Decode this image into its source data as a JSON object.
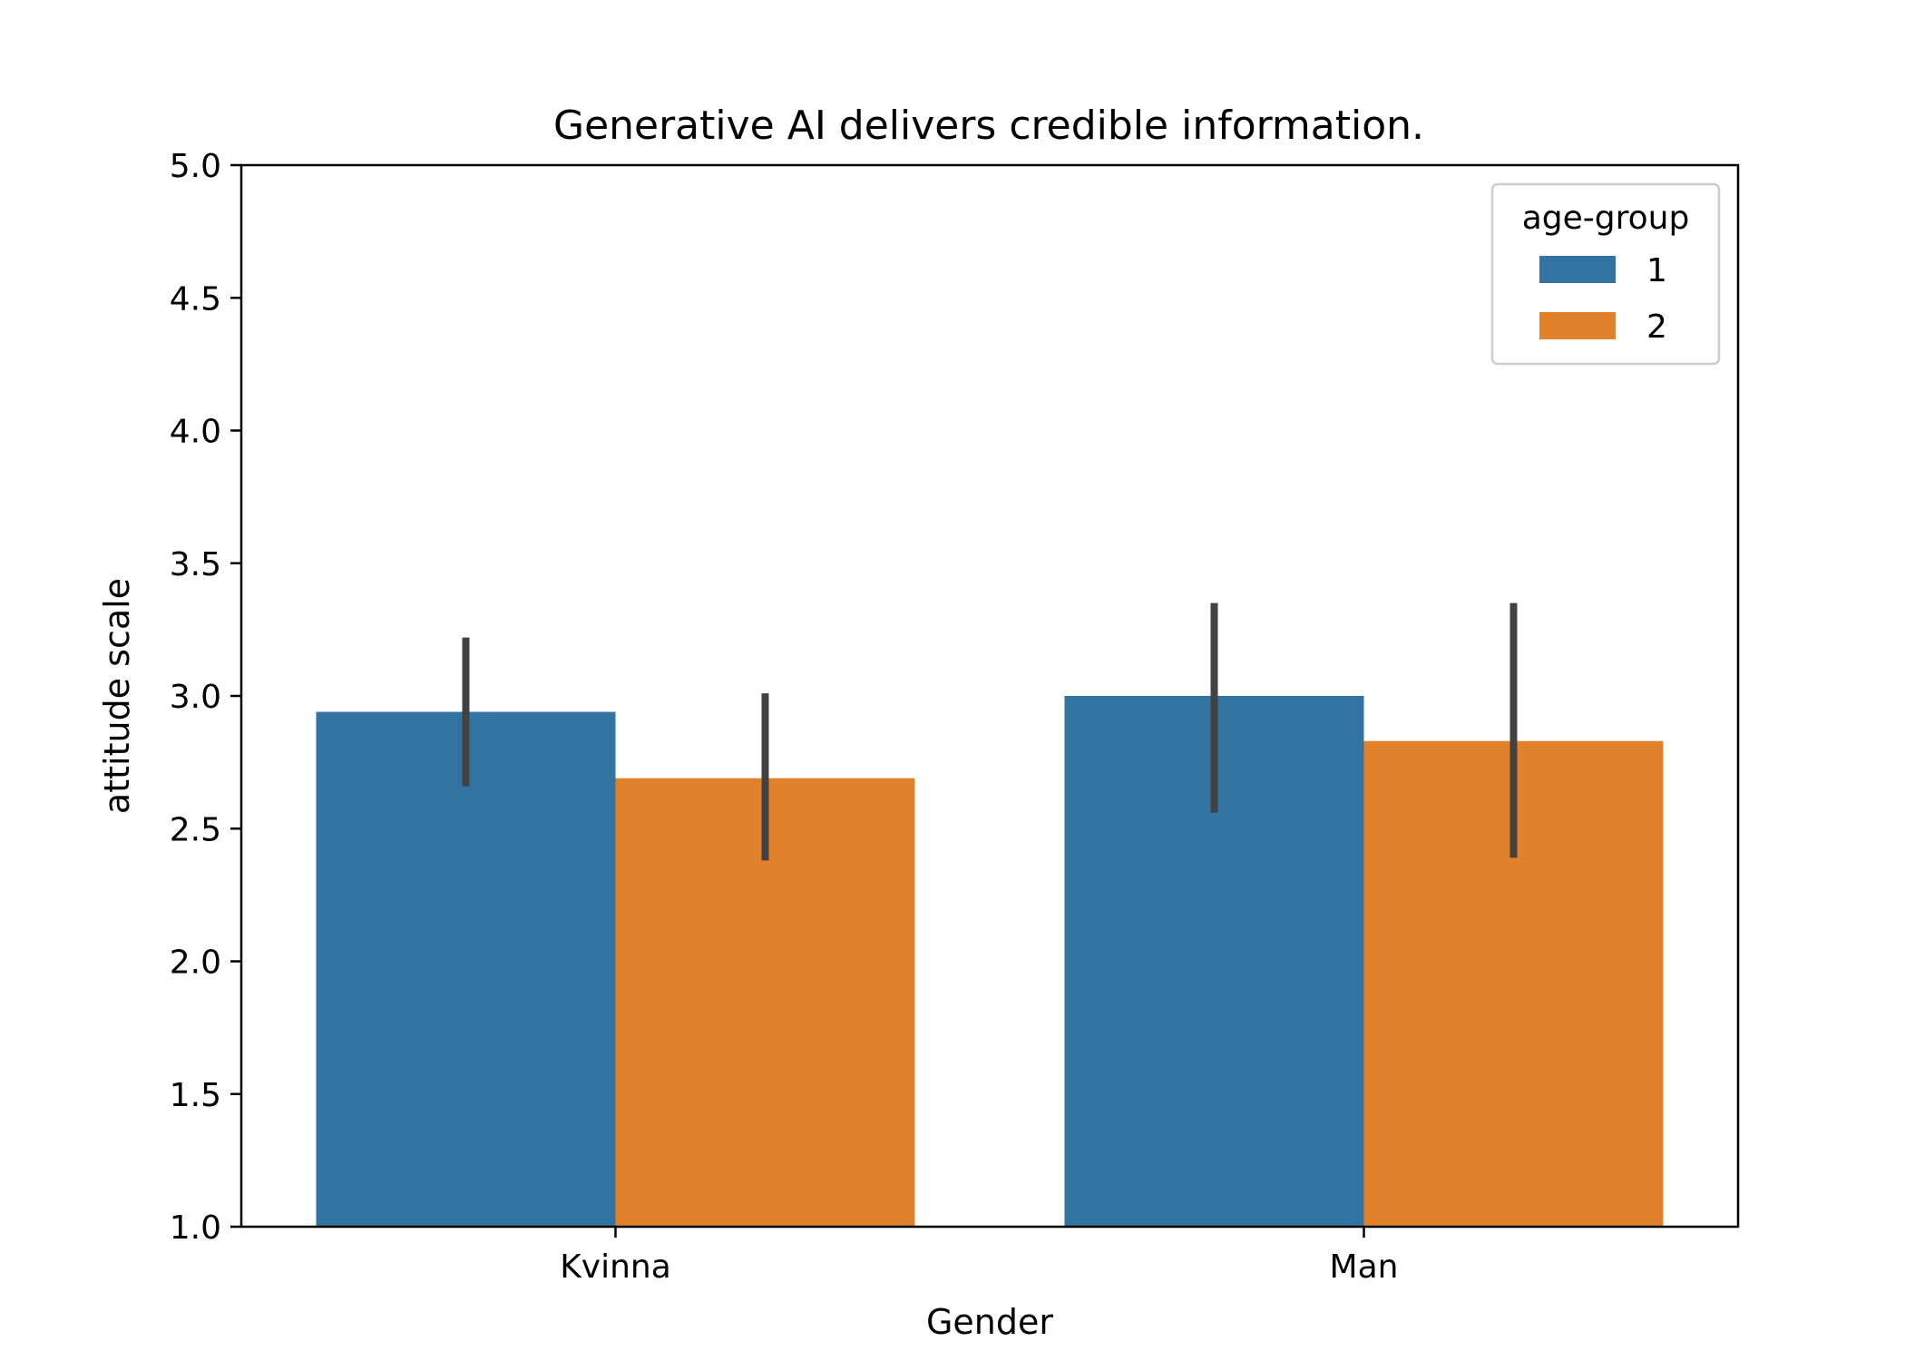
{
  "chart_data": {
    "type": "bar",
    "title": "Generative AI delivers credible information.",
    "xlabel": "Gender",
    "ylabel": "attitude scale",
    "categories": [
      "Kvinna",
      "Man"
    ],
    "ylim": [
      1.0,
      5.0
    ],
    "yticks": [
      "1.0",
      "1.5",
      "2.0",
      "2.5",
      "3.0",
      "3.5",
      "4.0",
      "4.5",
      "5.0"
    ],
    "grid": false,
    "legend": {
      "title": "age-group",
      "placement": "top-right"
    },
    "series": [
      {
        "name": "1",
        "color": "#3274a1",
        "values": [
          2.94,
          3.0
        ],
        "error_low": [
          2.66,
          2.56
        ],
        "error_high": [
          3.22,
          3.35
        ]
      },
      {
        "name": "2",
        "color": "#e1812c",
        "values": [
          2.69,
          2.83
        ],
        "error_low": [
          2.38,
          2.39
        ],
        "error_high": [
          3.01,
          3.35
        ]
      }
    ],
    "error_bar_color": "#424242"
  }
}
